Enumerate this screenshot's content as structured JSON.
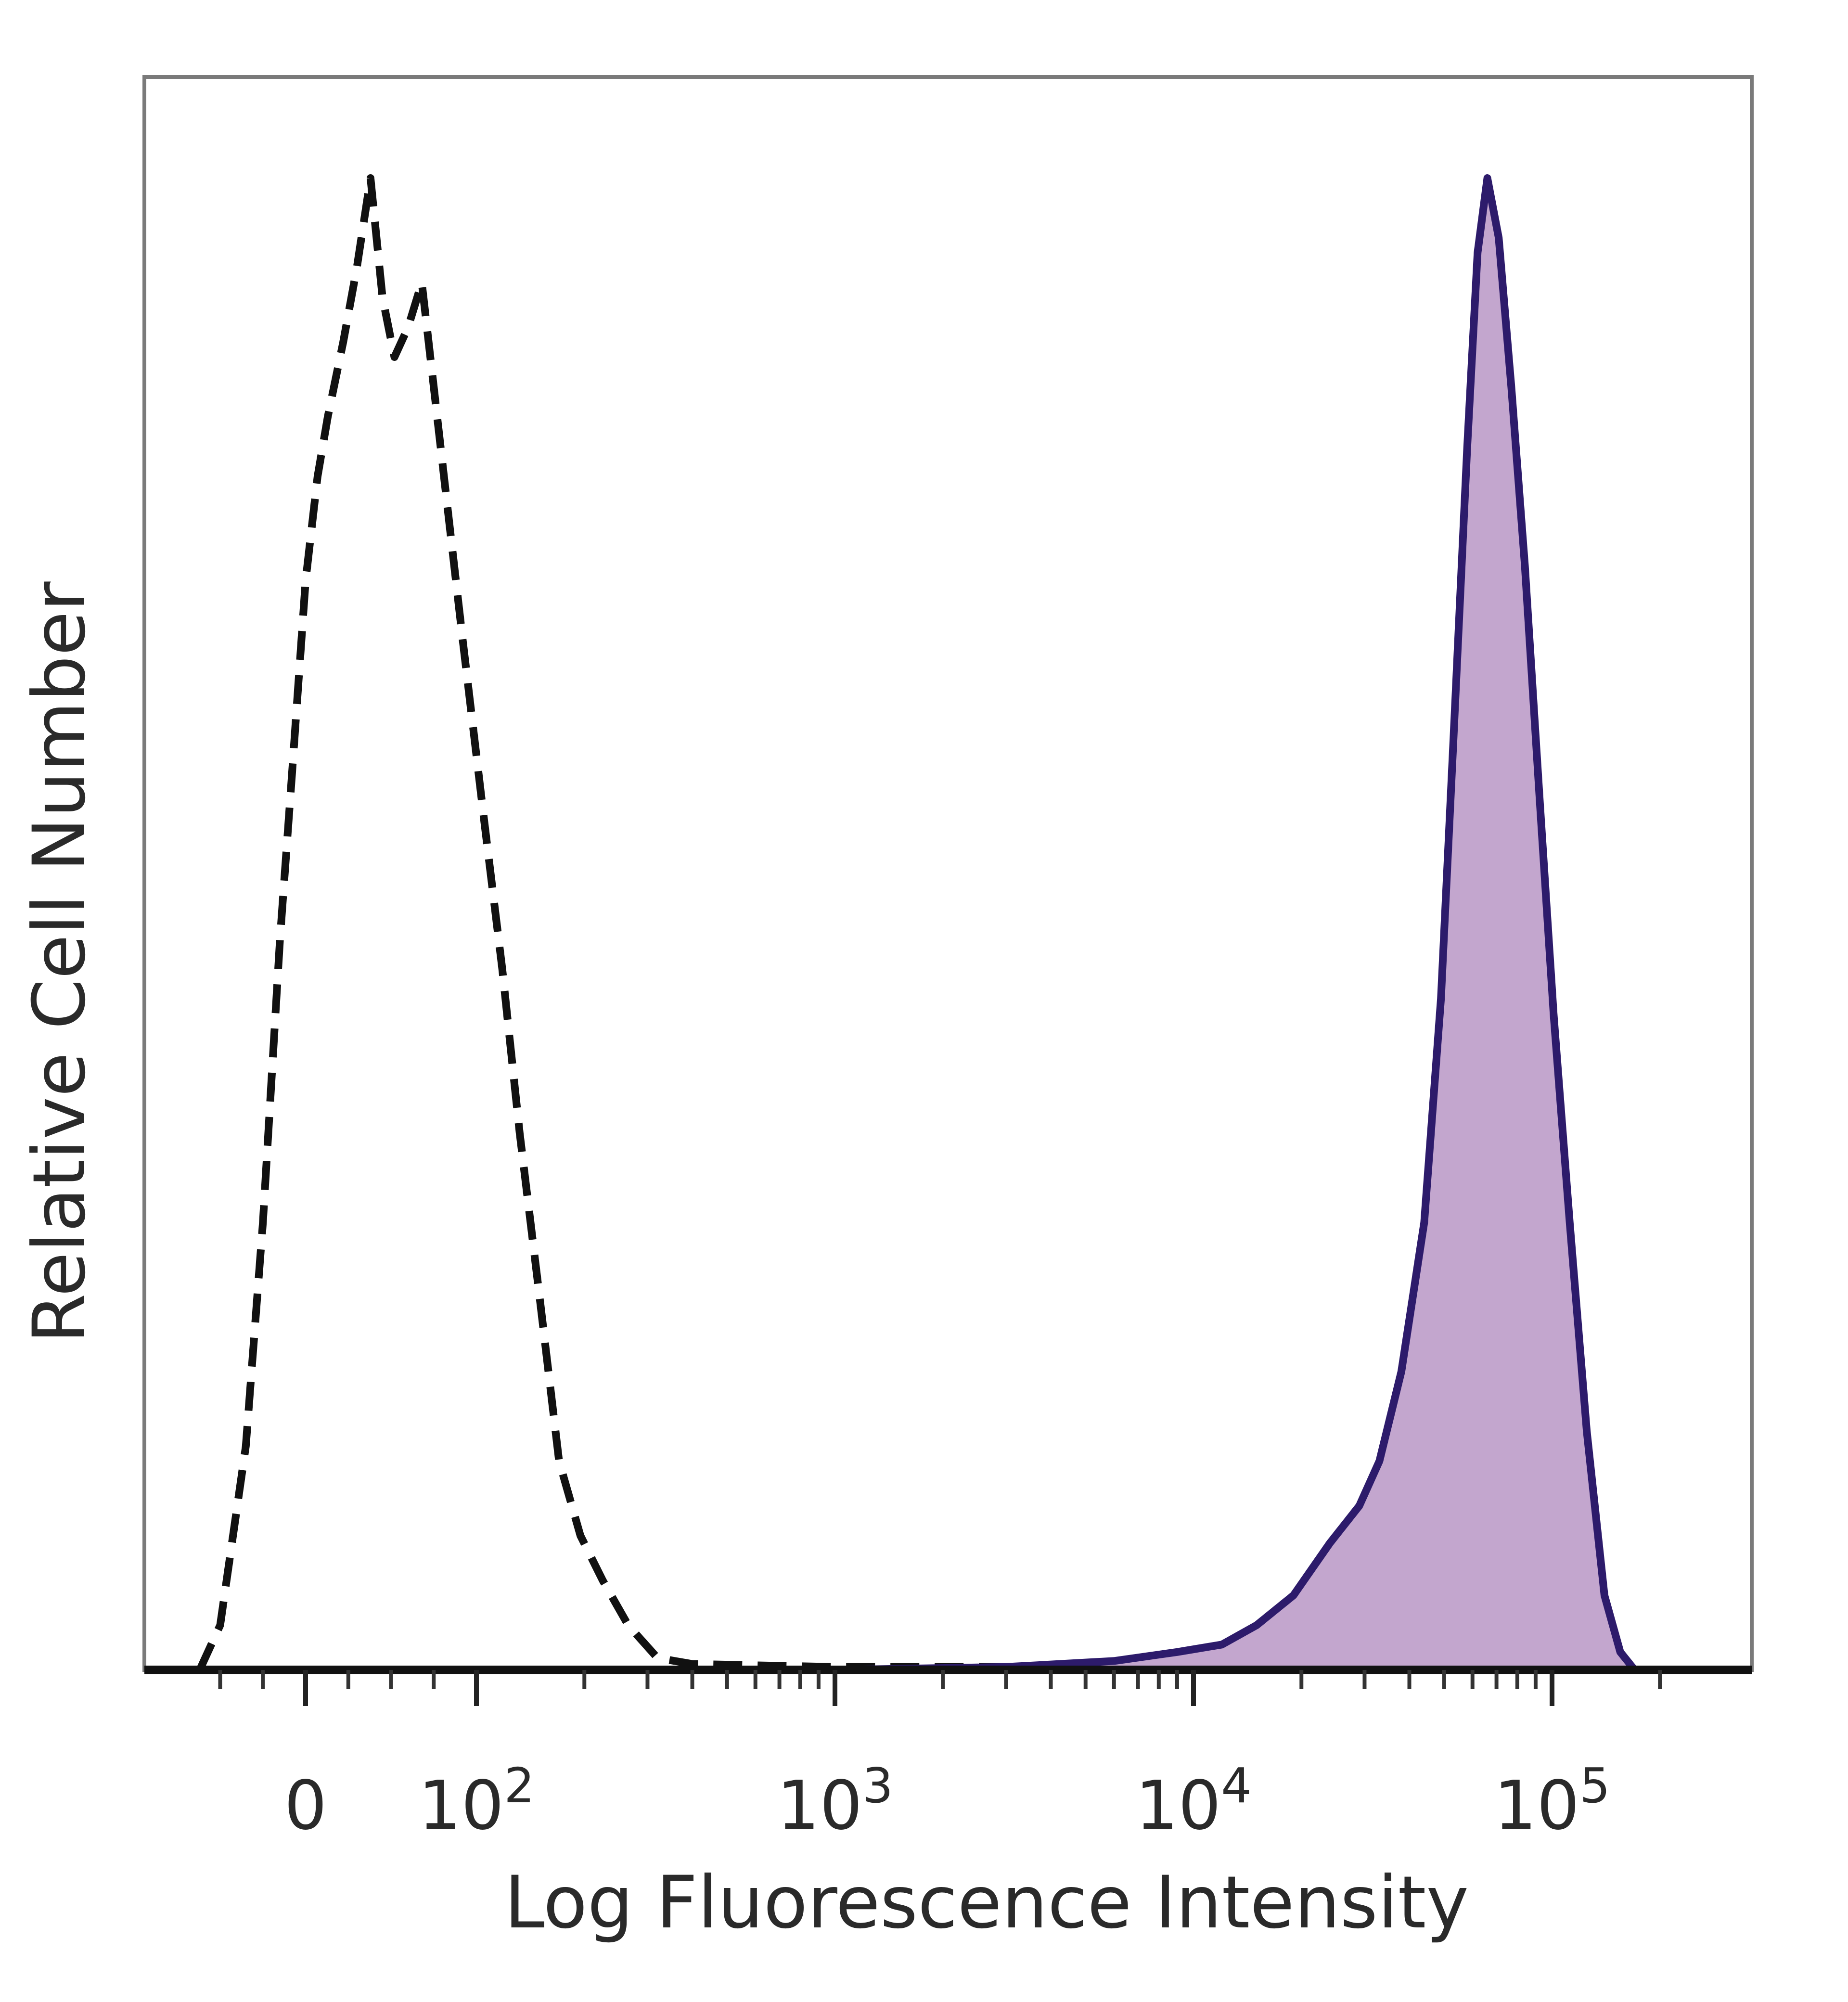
{
  "chart_data": {
    "type": "area",
    "title": "",
    "xlabel": "Log Fluorescence Intensity",
    "ylabel": "Relative Cell Number",
    "x_scale": "biexponential (linear near 0, log above)",
    "x_range": [
      -80,
      250000
    ],
    "y_range": [
      0,
      1
    ],
    "grid": false,
    "legend": "none",
    "x_ticks": [
      {
        "value": 0,
        "label": "0",
        "superscript": ""
      },
      {
        "value": 100,
        "label": "10",
        "superscript": "2"
      },
      {
        "value": 1000,
        "label": "10",
        "superscript": "3"
      },
      {
        "value": 10000,
        "label": "10",
        "superscript": "4"
      },
      {
        "value": 100000,
        "label": "10",
        "superscript": "5"
      }
    ],
    "series": [
      {
        "style": "dashed outline, no fill",
        "stroke": "#111111",
        "fill": "none",
        "points": [
          [
            -62,
            0.0
          ],
          [
            -50,
            0.03
          ],
          [
            -35,
            0.15
          ],
          [
            -25,
            0.3
          ],
          [
            -15,
            0.49
          ],
          [
            -8,
            0.6
          ],
          [
            0,
            0.73
          ],
          [
            7,
            0.8
          ],
          [
            13,
            0.84
          ],
          [
            22,
            0.89
          ],
          [
            30,
            0.94
          ],
          [
            38,
            1.0
          ],
          [
            45,
            0.92
          ],
          [
            52,
            0.88
          ],
          [
            60,
            0.9
          ],
          [
            68,
            0.93
          ],
          [
            75,
            0.86
          ],
          [
            83,
            0.78
          ],
          [
            92,
            0.69
          ],
          [
            105,
            0.57
          ],
          [
            118,
            0.47
          ],
          [
            132,
            0.36
          ],
          [
            150,
            0.25
          ],
          [
            170,
            0.14
          ],
          [
            195,
            0.09
          ],
          [
            225,
            0.06
          ],
          [
            265,
            0.03
          ],
          [
            320,
            0.008
          ],
          [
            400,
            0.004
          ],
          [
            1000,
            0.002
          ],
          [
            3000,
            0.002
          ],
          [
            10000,
            0.0
          ],
          [
            100000,
            0.0
          ],
          [
            200000,
            0.0
          ]
        ]
      },
      {
        "style": "solid outline with filled area",
        "stroke": "#2d1b6b",
        "fill": "#c3a6ce",
        "points": [
          [
            -80,
            0.0
          ],
          [
            1000,
            0.0
          ],
          [
            3000,
            0.002
          ],
          [
            6000,
            0.006
          ],
          [
            9000,
            0.012
          ],
          [
            12000,
            0.017
          ],
          [
            15000,
            0.03
          ],
          [
            19000,
            0.05
          ],
          [
            24000,
            0.085
          ],
          [
            29000,
            0.11
          ],
          [
            33000,
            0.14
          ],
          [
            38000,
            0.2
          ],
          [
            44000,
            0.3
          ],
          [
            49000,
            0.45
          ],
          [
            53000,
            0.62
          ],
          [
            58000,
            0.82
          ],
          [
            62000,
            0.95
          ],
          [
            66000,
            1.0
          ],
          [
            71000,
            0.96
          ],
          [
            77000,
            0.86
          ],
          [
            84000,
            0.74
          ],
          [
            92000,
            0.59
          ],
          [
            101000,
            0.44
          ],
          [
            112000,
            0.3
          ],
          [
            125000,
            0.16
          ],
          [
            140000,
            0.05
          ],
          [
            155000,
            0.012
          ],
          [
            170000,
            0.0
          ]
        ]
      }
    ]
  }
}
